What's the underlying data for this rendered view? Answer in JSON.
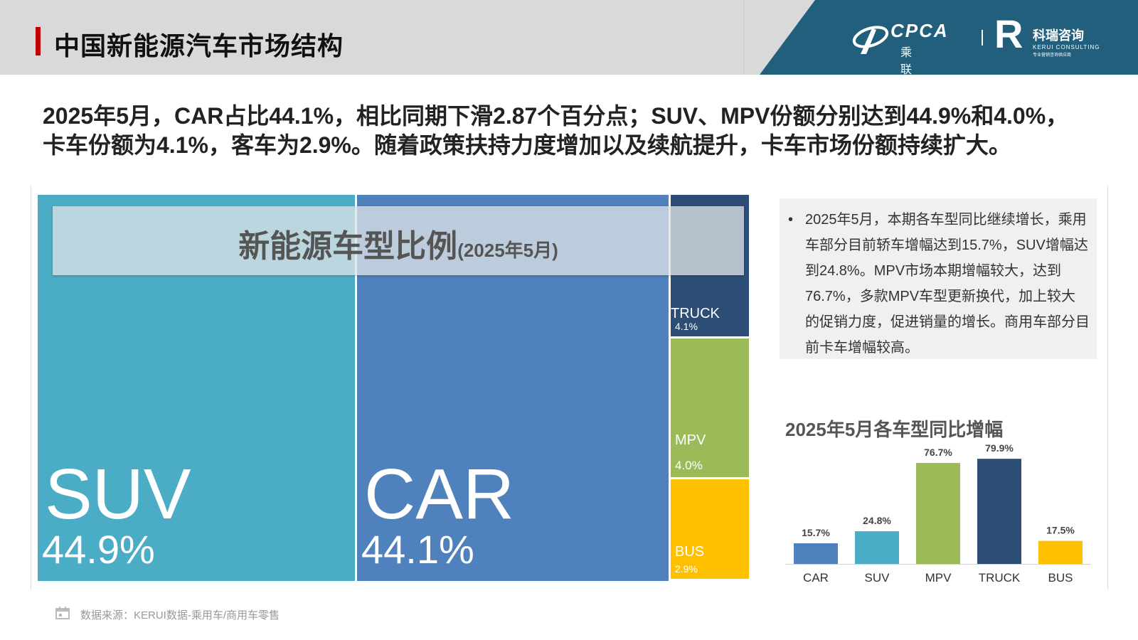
{
  "header": {
    "title": "中国新能源汽车市场结构",
    "cpca_en": "CPCA",
    "cpca_cn": "乘联分会",
    "kerui_cn": "科瑞咨询",
    "kerui_en": "KERUI CONSULTING",
    "kerui_sub": "专业营销咨询供应商"
  },
  "summary": "2025年5月，CAR占比44.1%，相比同期下滑2.87个百分点；SUV、MPV份额分别达到44.9%和4.0%，卡车份额为4.1%，客车为2.9%。随着政策扶持力度增加以及续航提升，卡车市场份额持续扩大。",
  "colors": {
    "suv": "#4bacc6",
    "car": "#4f81bd",
    "truck": "#2c4d75",
    "mpv": "#9bbb59",
    "bus": "#ffc000",
    "header_accent": "#215f7c"
  },
  "chart_data": [
    {
      "type": "treemap",
      "title": "新能源车型比例",
      "subtitle": "(2025年5月)",
      "categories": [
        "SUV",
        "CAR",
        "TRUCK",
        "MPV",
        "BUS"
      ],
      "values": [
        44.9,
        44.1,
        4.1,
        4.0,
        2.9
      ],
      "value_labels": [
        "44.9%",
        "44.1%",
        "4.1%",
        "4.0%",
        "2.9%"
      ],
      "unit": "%"
    },
    {
      "type": "bar",
      "title": "2025年5月各车型同比增幅",
      "categories": [
        "CAR",
        "SUV",
        "MPV",
        "TRUCK",
        "BUS"
      ],
      "values": [
        15.7,
        24.8,
        76.7,
        79.9,
        17.5
      ],
      "value_labels": [
        "15.7%",
        "24.8%",
        "76.7%",
        "79.9%",
        "17.5%"
      ],
      "xlabel": "",
      "ylabel": "",
      "ylim": [
        0,
        80
      ],
      "grid": false,
      "legend": "none"
    }
  ],
  "textbox": {
    "bullet": "•",
    "text": "2025年5月，本期各车型同比继续增长，乘用车部分目前轿车增幅达到15.7%，SUV增幅达到24.8%。MPV市场本期增幅较大，达到76.7%，多款MPV车型更新换代，加上较大的促销力度，促进销量的增长。商用车部分目前卡车增幅较高。"
  },
  "source": "数据来源：KERUI数据-乘用车/商用车零售"
}
